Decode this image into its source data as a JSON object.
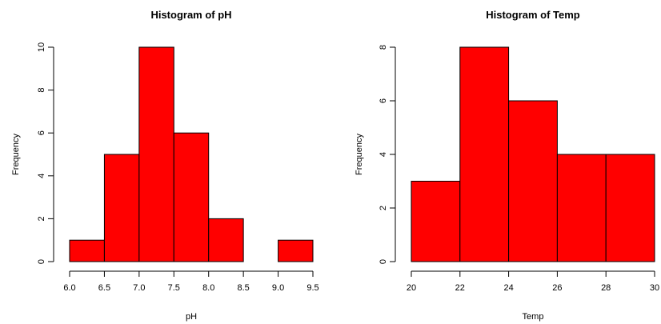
{
  "chart_data": [
    {
      "type": "bar",
      "title": "Histogram of pH",
      "xlabel": "pH",
      "ylabel": "Frequency",
      "bin_edges": [
        6.0,
        6.5,
        7.0,
        7.5,
        8.0,
        8.5,
        9.0,
        9.5
      ],
      "values": [
        1,
        5,
        10,
        6,
        2,
        0,
        1
      ],
      "xlim": [
        6.0,
        9.5
      ],
      "ylim": [
        0,
        10
      ],
      "x_ticks": [
        "6.0",
        "6.5",
        "7.0",
        "7.5",
        "8.0",
        "8.5",
        "9.0",
        "9.5"
      ],
      "y_ticks": [
        "0",
        "2",
        "4",
        "6",
        "8",
        "10"
      ],
      "bar_color": "#ff0000",
      "grid": false
    },
    {
      "type": "bar",
      "title": "Histogram of Temp",
      "xlabel": "Temp",
      "ylabel": "Frequency",
      "bin_edges": [
        20,
        22,
        24,
        26,
        28,
        30
      ],
      "values": [
        3,
        8,
        6,
        4,
        4
      ],
      "xlim": [
        20,
        30
      ],
      "ylim": [
        0,
        8
      ],
      "x_ticks": [
        "20",
        "22",
        "24",
        "26",
        "28",
        "30"
      ],
      "y_ticks": [
        "0",
        "2",
        "4",
        "6",
        "8"
      ],
      "bar_color": "#ff0000",
      "grid": false
    }
  ]
}
